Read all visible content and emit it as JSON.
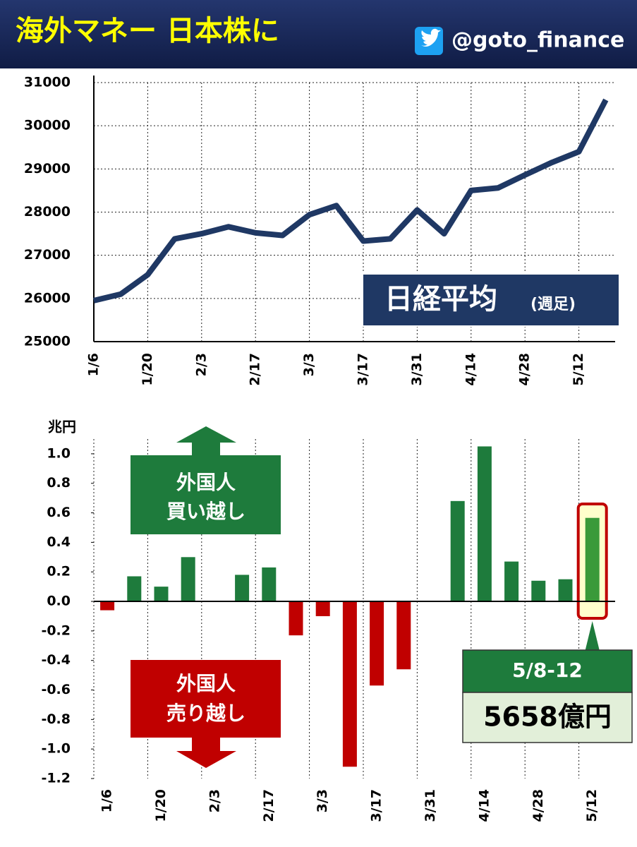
{
  "header": {
    "title": "海外マネー 日本株に",
    "handle": "@goto_finance"
  },
  "chart_data": [
    {
      "type": "line",
      "categories": [
        "1/6",
        null,
        "1/20",
        null,
        "2/3",
        null,
        "2/17",
        null,
        "3/3",
        null,
        "3/17",
        null,
        "3/31",
        null,
        "4/14",
        null,
        "4/28",
        null,
        "5/12",
        null
      ],
      "values": [
        25950,
        26100,
        26550,
        27380,
        27500,
        27660,
        27520,
        27460,
        27940,
        28150,
        27330,
        27380,
        28050,
        27500,
        28500,
        28560,
        28860,
        29150,
        29400,
        30600
      ],
      "color": "#1f3864",
      "ylim": [
        25000,
        31000
      ],
      "yticks": [
        25000,
        26000,
        27000,
        28000,
        29000,
        30000,
        31000
      ],
      "grid": true,
      "label": "日経平均",
      "label_note": "(週足)"
    },
    {
      "type": "bar",
      "unit": "兆円",
      "categories": [
        "1/6",
        null,
        "1/20",
        null,
        "2/3",
        null,
        "2/17",
        null,
        "3/3",
        null,
        "3/17",
        null,
        "3/31",
        null,
        "4/14",
        null,
        "4/28",
        null,
        "5/12"
      ],
      "values": [
        -0.06,
        0.17,
        0.1,
        0.3,
        null,
        0.18,
        0.23,
        -0.23,
        -0.1,
        -1.12,
        -0.57,
        -0.46,
        null,
        0.68,
        1.05,
        0.27,
        0.14,
        0.15,
        0.5658
      ],
      "positive_color": "#1e7b3c",
      "negative_color": "#c00000",
      "highlight_color": "#3a9a3a",
      "ylim": [
        -1.2,
        1.1
      ],
      "yticks": [
        {
          "value": -1.2,
          "label": "-1.2"
        },
        {
          "value": -1,
          "label": "-1.0"
        },
        {
          "value": -0.8,
          "label": "-0.8"
        },
        {
          "value": -0.6,
          "label": "-0.6"
        },
        {
          "value": -0.4,
          "label": "-0.4"
        },
        {
          "value": -0.2,
          "label": "-0.2"
        },
        {
          "value": 0,
          "label": "0.0"
        },
        0.2,
        0.4,
        0.6,
        0.8,
        {
          "value": 1,
          "label": "1.0"
        }
      ],
      "buy_label": [
        "外国人",
        "買い越し"
      ],
      "sell_label": [
        "外国人",
        "売り越し"
      ],
      "callout": {
        "period": "5/8-12",
        "label": "5658億円"
      }
    }
  ]
}
